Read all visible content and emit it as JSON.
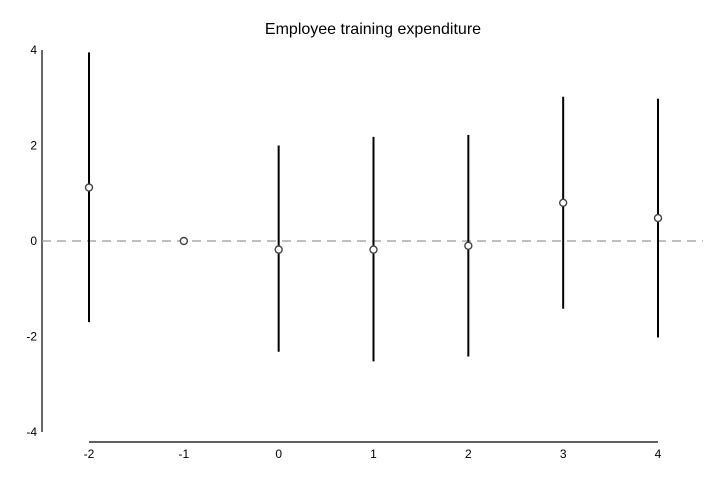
{
  "chart_data": {
    "type": "scatter",
    "title": "Employee training expenditure",
    "xlabel": "",
    "ylabel": "",
    "x": [
      -2,
      -1,
      0,
      1,
      2,
      3,
      4
    ],
    "series": [
      {
        "values": [
          1.12,
          0.0,
          -0.18,
          -0.18,
          -0.1,
          0.8,
          0.48
        ],
        "lower": [
          -1.7,
          0.0,
          -2.32,
          -2.52,
          -2.42,
          -1.42,
          -2.02
        ],
        "upper": [
          3.95,
          0.0,
          2.0,
          2.18,
          2.22,
          3.02,
          2.98
        ]
      }
    ],
    "xlim": [
      -2,
      4
    ],
    "ylim": [
      -4,
      4
    ],
    "xticks": [
      "-2",
      "-1",
      "0",
      "1",
      "2",
      "3",
      "4"
    ],
    "yticks": [
      "-4",
      "-2",
      "0",
      "2",
      "4"
    ],
    "reference_line": 0,
    "grid": false,
    "legend": "none"
  }
}
